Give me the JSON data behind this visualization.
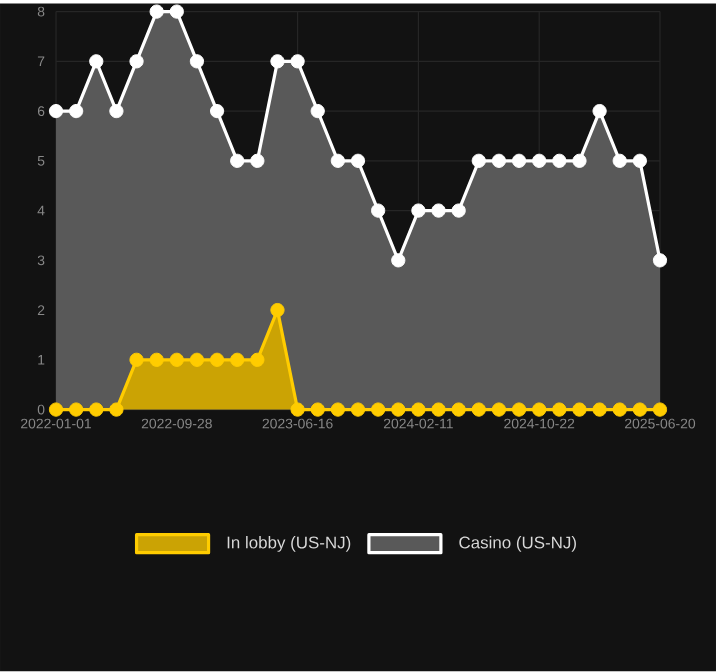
{
  "chart_data": {
    "type": "area",
    "categories": [
      "2022-01-01",
      null,
      null,
      null,
      null,
      null,
      "2022-09-28",
      null,
      null,
      null,
      null,
      null,
      "2023-06-16",
      null,
      null,
      null,
      null,
      null,
      "2024-02-11",
      null,
      null,
      null,
      null,
      null,
      "2024-10-22",
      null,
      null,
      null,
      null,
      null,
      "2025-06-20"
    ],
    "series": [
      {
        "name": "In lobby (US-NJ)",
        "color": "#ffcc00",
        "values": [
          0,
          0,
          0,
          0,
          1,
          1,
          1,
          1,
          1,
          1,
          1,
          2,
          0,
          0,
          0,
          0,
          0,
          0,
          0,
          0,
          0,
          0,
          0,
          0,
          0,
          0,
          0,
          0,
          0,
          0,
          0
        ]
      },
      {
        "name": "Casino (US-NJ)",
        "color": "#ffffff",
        "values": [
          6,
          6,
          7,
          6,
          7,
          8,
          8,
          7,
          6,
          5,
          5,
          7,
          7,
          6,
          5,
          5,
          4,
          3,
          4,
          4,
          4,
          5,
          5,
          5,
          5,
          5,
          5,
          6,
          5,
          5,
          3
        ]
      }
    ],
    "ylim": [
      0,
      8
    ],
    "yticks": [
      0,
      1,
      2,
      3,
      4,
      5,
      6,
      7,
      8
    ],
    "grid": true,
    "legend": "bottom",
    "marker": "circle"
  }
}
